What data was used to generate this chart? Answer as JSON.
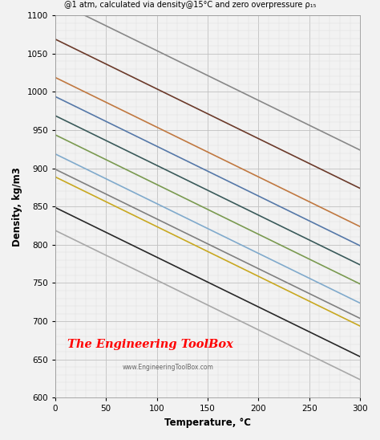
{
  "subtitle": "@1 atm, calculated via density@15°C and zero overpressure ρ₁₅",
  "xlabel": "Temperature, °C",
  "ylabel": "Density, kg/m3",
  "xmin": 0,
  "xmax": 300,
  "ymin": 600,
  "ymax": 1100,
  "watermark_main": "The Engineering ToolBox",
  "watermark_sub": "www.EngineeringToolBox.com",
  "lines": [
    {
      "rho15": 1109,
      "color": "#888888",
      "lw": 1.2
    },
    {
      "rho15": 1059,
      "color": "#6B3A2A",
      "lw": 1.2
    },
    {
      "rho15": 1009,
      "color": "#C07840",
      "lw": 1.2
    },
    {
      "rho15": 984,
      "color": "#5578A8",
      "lw": 1.2
    },
    {
      "rho15": 959,
      "color": "#3A5A5A",
      "lw": 1.2
    },
    {
      "rho15": 934,
      "color": "#7A9A50",
      "lw": 1.2
    },
    {
      "rho15": 909,
      "color": "#80AACC",
      "lw": 1.2
    },
    {
      "rho15": 889,
      "color": "#808080",
      "lw": 1.2
    },
    {
      "rho15": 879,
      "color": "#C8A820",
      "lw": 1.2
    },
    {
      "rho15": 839,
      "color": "#282828",
      "lw": 1.2
    },
    {
      "rho15": 809,
      "color": "#A8A8A8",
      "lw": 1.2
    }
  ],
  "slope": -0.65,
  "bg_color": "#f2f2f2",
  "grid_major_color": "#c0c0c0",
  "grid_minor_color": "#e0e0e0",
  "title_fontsize": 9.5,
  "subtitle_fontsize": 7.0,
  "xlabel_fontsize": 8.5,
  "ylabel_fontsize": 8.5,
  "tick_fontsize": 7.5,
  "watermark_fontsize": 10.5,
  "watermark_sub_fontsize": 5.5
}
